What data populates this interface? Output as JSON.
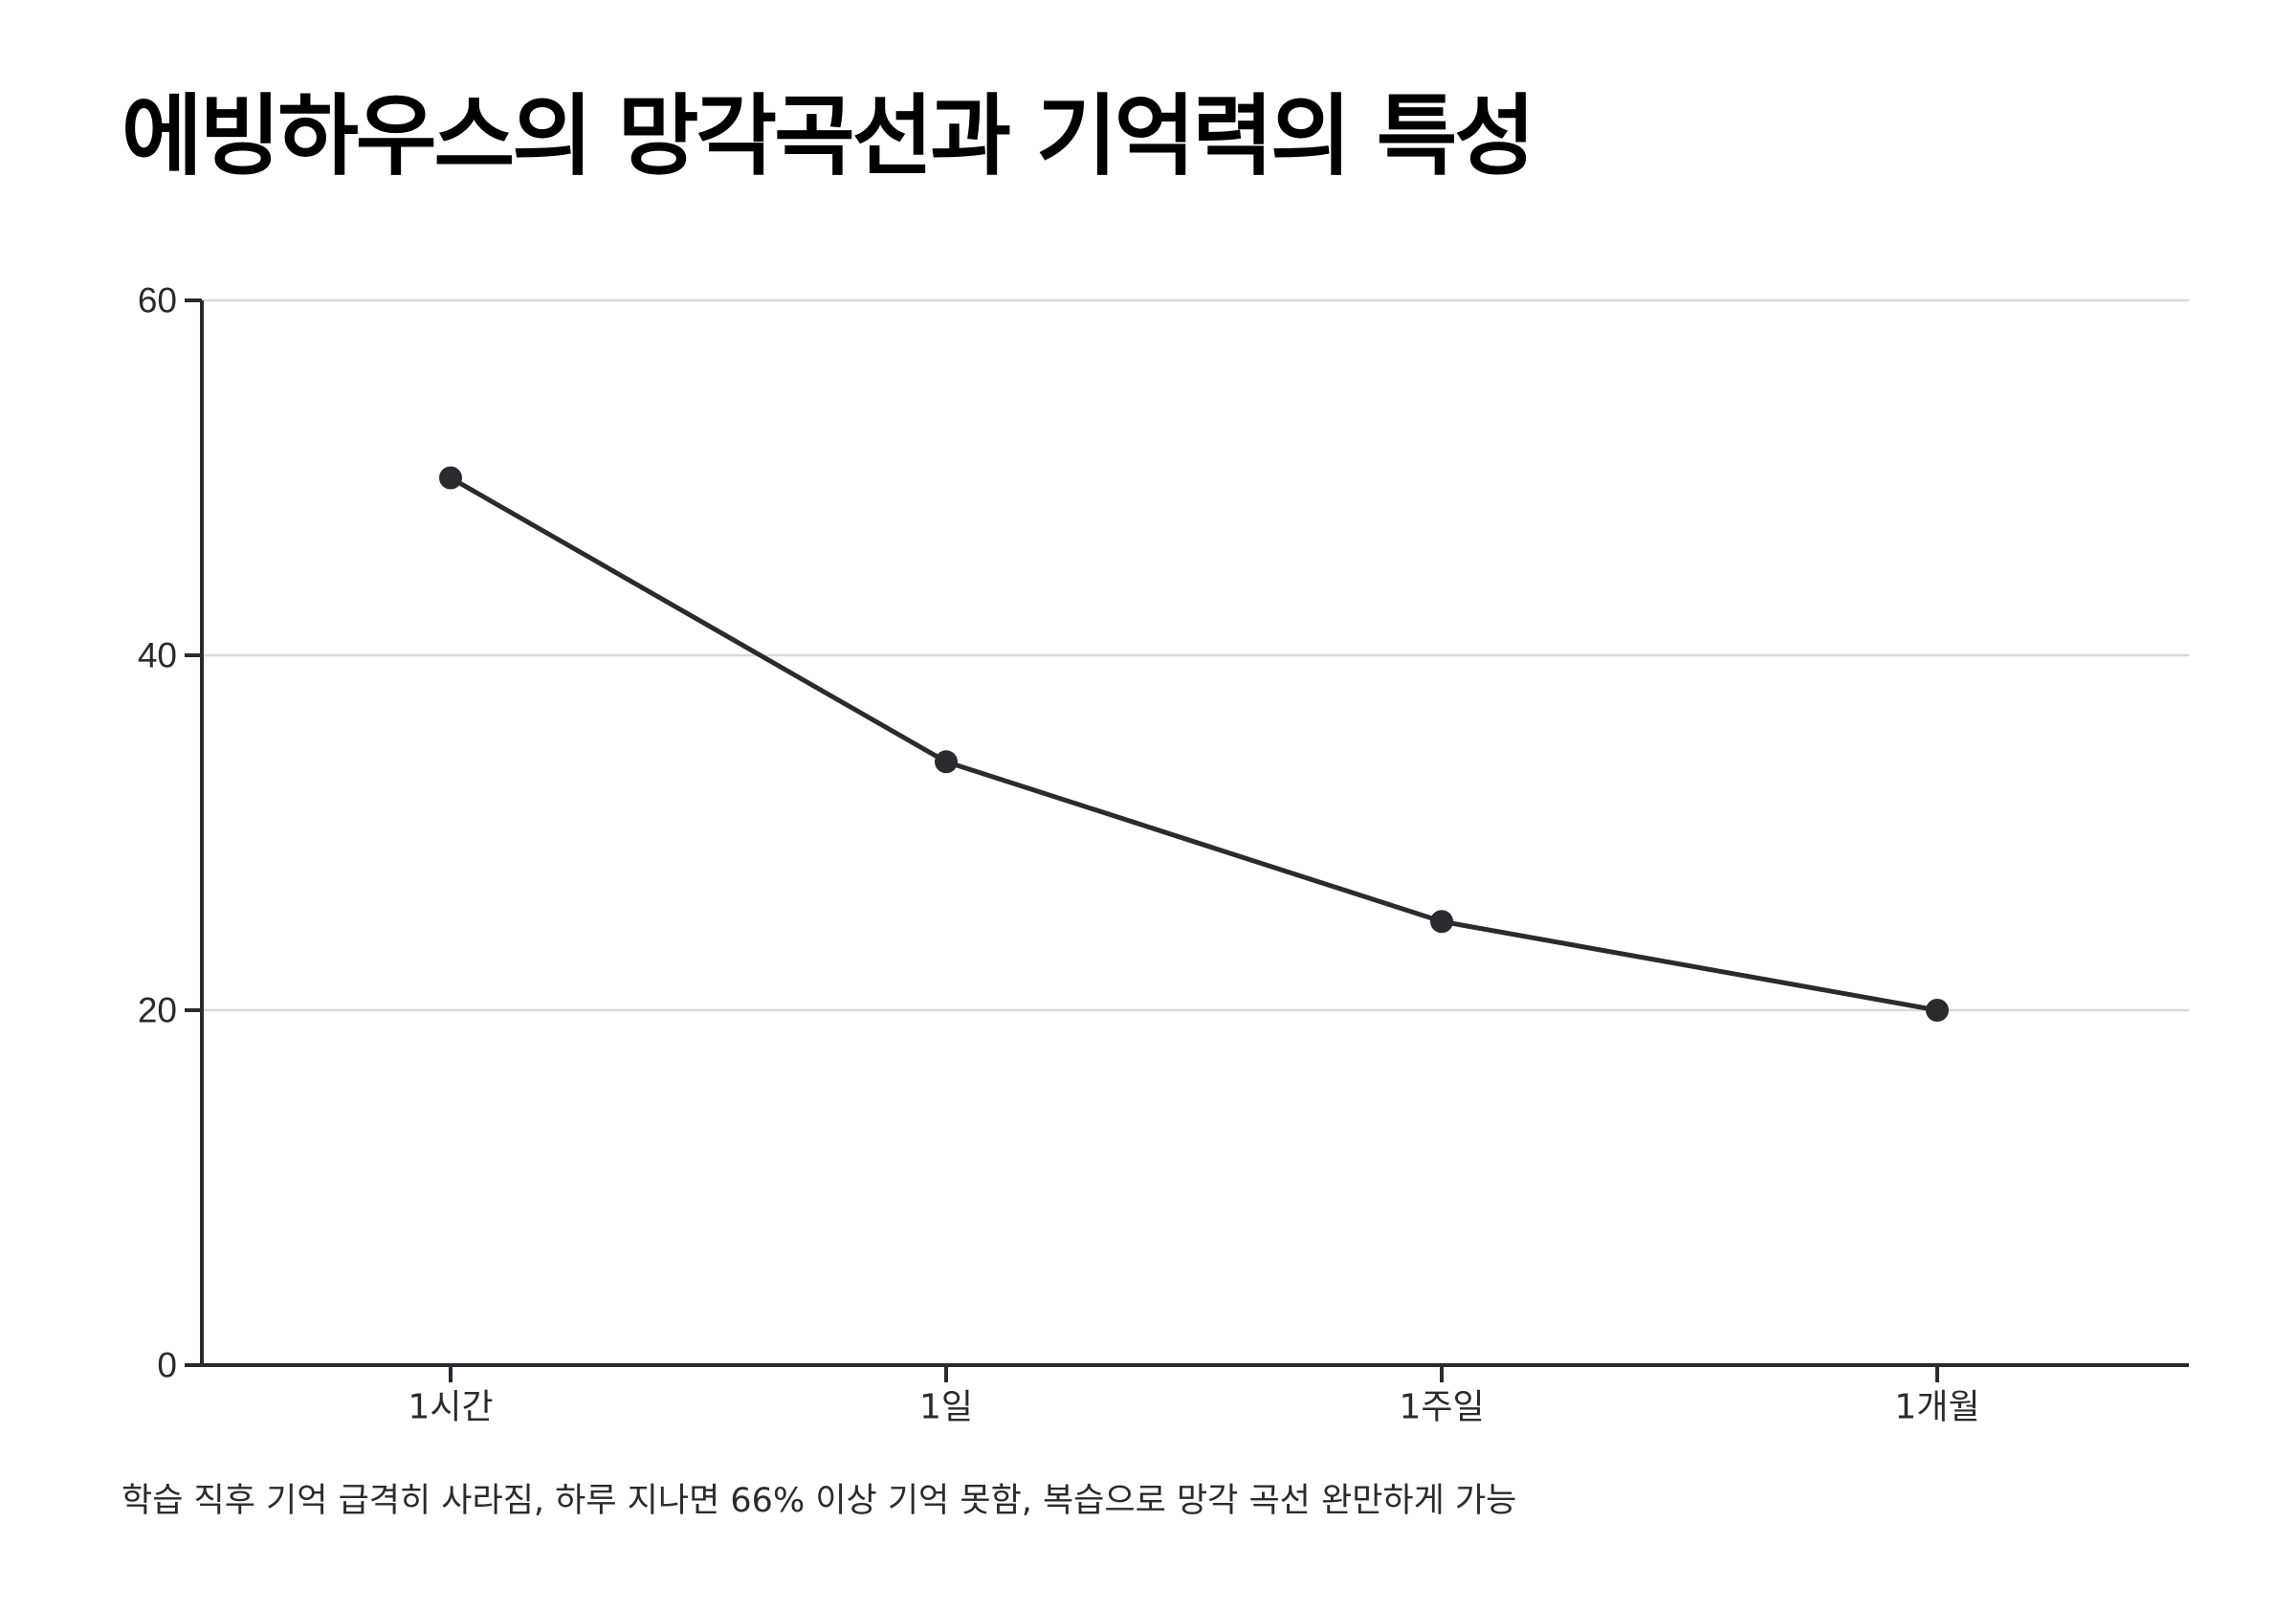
{
  "title": "에빙하우스의 망각곡선과 기억력의 특성",
  "caption": "학습 직후 기억 급격히 사라짐, 하루 지나면 66% 이상 기억 못함, 복습으로 망각 곡선 완만하게 가능",
  "colors": {
    "line": "#2b2a2f",
    "grid": "#d9d9d9",
    "axis": "#2b2a2f"
  },
  "chart_data": {
    "type": "line",
    "categories": [
      "1시간",
      "1일",
      "1주일",
      "1개월"
    ],
    "values": [
      50,
      34,
      25,
      20
    ],
    "ylim": [
      0,
      60
    ],
    "yticks": [
      0,
      20,
      40,
      60
    ],
    "grid": true,
    "legend": "none"
  }
}
